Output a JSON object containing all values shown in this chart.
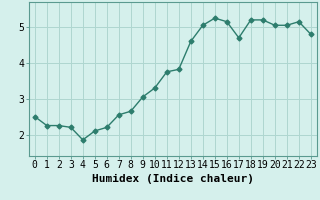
{
  "x": [
    0,
    1,
    2,
    3,
    4,
    5,
    6,
    7,
    8,
    9,
    10,
    11,
    12,
    13,
    14,
    15,
    16,
    17,
    18,
    19,
    20,
    21,
    22,
    23
  ],
  "y": [
    2.5,
    2.25,
    2.25,
    2.2,
    1.85,
    2.1,
    2.2,
    2.55,
    2.65,
    3.05,
    3.3,
    3.75,
    3.82,
    4.6,
    5.05,
    5.25,
    5.15,
    4.7,
    5.2,
    5.2,
    5.05,
    5.05,
    5.15,
    4.8
  ],
  "line_color": "#2d7d6d",
  "marker": "D",
  "marker_size": 2.5,
  "linewidth": 1.0,
  "bg_color": "#d5f0ec",
  "grid_color": "#aed6d0",
  "xlabel": "Humidex (Indice chaleur)",
  "xlabel_fontsize": 8,
  "tick_fontsize": 7,
  "yticks": [
    2,
    3,
    4,
    5
  ],
  "ylim": [
    1.4,
    5.7
  ],
  "xlim": [
    -0.5,
    23.5
  ],
  "xticks": [
    0,
    1,
    2,
    3,
    4,
    5,
    6,
    7,
    8,
    9,
    10,
    11,
    12,
    13,
    14,
    15,
    16,
    17,
    18,
    19,
    20,
    21,
    22,
    23
  ]
}
